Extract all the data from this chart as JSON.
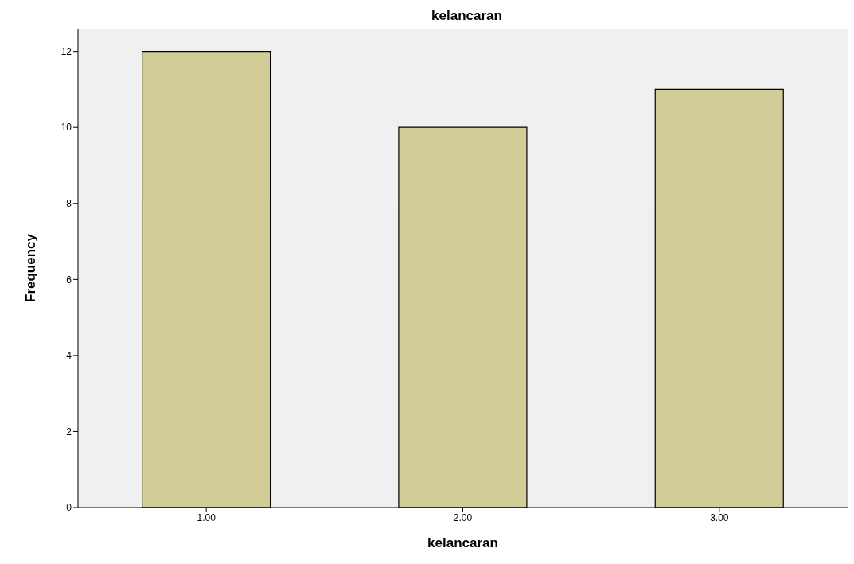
{
  "chart_data": {
    "type": "bar",
    "title": "kelancaran",
    "xlabel": "kelancaran",
    "ylabel": "Frequency",
    "categories": [
      "1.00",
      "2.00",
      "3.00"
    ],
    "values": [
      12,
      10,
      11
    ],
    "color": "#d2cc96",
    "ylim": [
      0,
      12.6
    ],
    "yticks": [
      0,
      2,
      4,
      6,
      8,
      10,
      12
    ],
    "grid": false
  }
}
